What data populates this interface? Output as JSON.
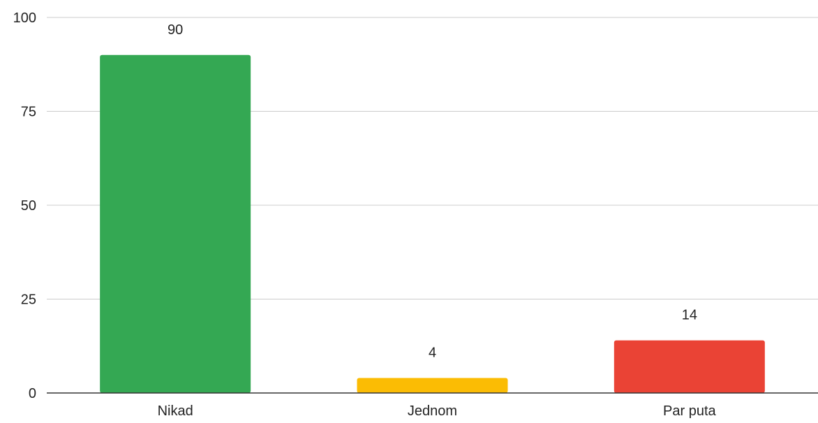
{
  "chart_data": {
    "type": "bar",
    "title": "",
    "xlabel": "",
    "ylabel": "",
    "categories": [
      "Nikad",
      "Jednom",
      "Par puta"
    ],
    "values": [
      90,
      4,
      14
    ],
    "data_labels": [
      "90",
      "4",
      "14"
    ],
    "bar_colors": [
      "#34a853",
      "#fbbc04",
      "#ea4335"
    ],
    "ylim": [
      0,
      100
    ],
    "yticks": [
      0,
      25,
      50,
      75,
      100
    ],
    "ytick_labels": [
      "0",
      "25",
      "50",
      "75",
      "100"
    ],
    "grid": true,
    "legend": "none"
  }
}
